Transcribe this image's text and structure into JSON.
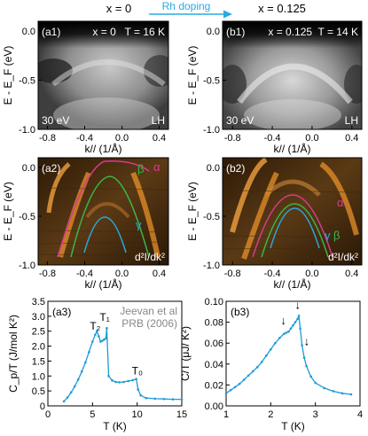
{
  "header": {
    "left_label": "x = 0",
    "arrow_label": "Rh doping",
    "right_label": "x = 0.125",
    "arrow_color": "#29abe2"
  },
  "panels": {
    "a1": {
      "tag": "(a1)",
      "info": "x = 0   T = 16 K",
      "energy": "30 eV",
      "polarization": "LH"
    },
    "b1": {
      "tag": "(b1)",
      "info": "x = 0.125  T = 14 K",
      "energy": "30 eV",
      "polarization": "LH"
    },
    "a2": {
      "tag": "(a2)",
      "note": "d²I/dk²",
      "bands": [
        {
          "name": "α",
          "color": "#d93a8c"
        },
        {
          "name": "β",
          "color": "#3cb44b"
        },
        {
          "name": "γ",
          "color": "#2aa7d8"
        }
      ]
    },
    "b2": {
      "tag": "(b2)",
      "note": "d²I/dk²",
      "bands": [
        {
          "name": "α",
          "color": "#d93a8c"
        },
        {
          "name": "β",
          "color": "#3cb44b"
        },
        {
          "name": "γ",
          "color": "#2aa7d8"
        }
      ]
    }
  },
  "arpes_axes": {
    "ylabel": "E - E_F (eV)",
    "xlabel": "k// (1/Å)",
    "xticks": [
      "-0.8",
      "-0.4",
      "0.0",
      "0.4"
    ],
    "yticks": [
      "0.0",
      "-0.5",
      "-1.0"
    ]
  },
  "chart_data": [
    {
      "id": "a3",
      "type": "line",
      "tag": "(a3)",
      "xlabel": "T (K)",
      "ylabel": "C_p/T (J/mol K²)",
      "xlim": [
        0,
        15
      ],
      "ylim": [
        0,
        3.5
      ],
      "xticks": [
        "0",
        "5",
        "10",
        "15"
      ],
      "yticks": [
        "0",
        "0.5",
        "1.0",
        "1.5",
        "2.0",
        "2.5",
        "3.0",
        "3.5"
      ],
      "color": "#1e9bd7",
      "annotations": [
        "T₂",
        "T₁",
        "T₀"
      ],
      "reference": [
        "Jeevan et al",
        "PRB (2006)"
      ],
      "x": [
        1.8,
        2.2,
        2.6,
        3.0,
        3.4,
        3.8,
        4.2,
        4.6,
        5.0,
        5.3,
        5.5,
        5.7,
        5.9,
        6.1,
        6.3,
        6.5,
        6.6,
        6.8,
        7.2,
        7.6,
        8.0,
        8.5,
        9.0,
        9.5,
        9.9,
        10.1,
        10.4,
        11.0,
        12.0,
        13.0,
        14.0,
        15.0
      ],
      "y": [
        0.15,
        0.28,
        0.45,
        0.65,
        0.88,
        1.15,
        1.45,
        1.8,
        2.15,
        2.38,
        2.5,
        2.33,
        2.15,
        2.18,
        2.22,
        2.26,
        2.6,
        1.0,
        0.85,
        0.8,
        0.79,
        0.8,
        0.83,
        0.86,
        0.9,
        0.55,
        0.35,
        0.26,
        0.24,
        0.23,
        0.22,
        0.22
      ]
    },
    {
      "id": "b3",
      "type": "line",
      "tag": "(b3)",
      "xlabel": "T (K)",
      "ylabel": "C/T (μJ/ K²)",
      "xlim": [
        1,
        4
      ],
      "ylim": [
        0,
        0.1
      ],
      "xticks": [
        "1",
        "2",
        "3",
        "4"
      ],
      "yticks": [
        "0.00",
        "0.02",
        "0.04",
        "0.06",
        "0.08",
        "0.10"
      ],
      "color": "#1e9bd7",
      "annotations": [
        "↓",
        "↓",
        "↓"
      ],
      "x": [
        1.0,
        1.1,
        1.2,
        1.3,
        1.4,
        1.5,
        1.6,
        1.7,
        1.8,
        1.9,
        2.0,
        2.1,
        2.2,
        2.3,
        2.35,
        2.4,
        2.45,
        2.5,
        2.55,
        2.6,
        2.63,
        2.66,
        2.7,
        2.75,
        2.8,
        2.9,
        3.0,
        3.2,
        3.4,
        3.6,
        3.8
      ],
      "y": [
        0.012,
        0.015,
        0.018,
        0.021,
        0.025,
        0.029,
        0.033,
        0.037,
        0.042,
        0.048,
        0.054,
        0.06,
        0.065,
        0.069,
        0.07,
        0.071,
        0.074,
        0.077,
        0.08,
        0.083,
        0.086,
        0.074,
        0.058,
        0.046,
        0.038,
        0.028,
        0.022,
        0.017,
        0.014,
        0.012,
        0.011
      ]
    }
  ]
}
